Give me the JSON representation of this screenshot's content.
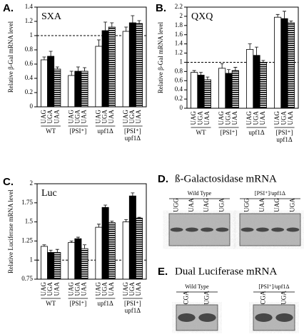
{
  "chart_data": [
    {
      "type": "bar",
      "panel": "A.",
      "title": "SXA",
      "ylabel": "Relative β-Gal mRNA level",
      "categories": [
        "WT",
        "[PSI⁺]",
        "upf1Δ",
        [
          "[PSI⁺]",
          "upf1Δ"
        ]
      ],
      "series": [
        {
          "name": "UAG",
          "color": "#ffffff",
          "values": [
            0.66,
            0.44,
            0.85,
            1.06
          ],
          "errors": [
            0.04,
            0.06,
            0.09,
            0.06
          ]
        },
        {
          "name": "UGA",
          "color": "#000000",
          "values": [
            0.71,
            0.5,
            1.07,
            1.18
          ],
          "errors": [
            0.07,
            0.06,
            0.12,
            0.1
          ]
        },
        {
          "name": "UAA",
          "color": "#000000",
          "pattern": "stripes",
          "values": [
            0.53,
            0.5,
            1.12,
            1.17
          ],
          "errors": [
            0.03,
            0.05,
            0.06,
            0.04
          ]
        }
      ],
      "ylim": [
        0,
        1.4
      ],
      "yticks": [
        0,
        0.2,
        0.4,
        0.6,
        0.8,
        1,
        1.2,
        1.4
      ],
      "reference_line": 1
    },
    {
      "type": "bar",
      "panel": "B.",
      "title": "QXQ",
      "ylabel": "Relative β-Gal mRNA level",
      "categories": [
        "WT",
        "[PSI⁺]",
        "upf1Δ",
        [
          "[PSI⁺]",
          "upf1Δ"
        ]
      ],
      "series": [
        {
          "name": "UAG",
          "color": "#ffffff",
          "values": [
            0.78,
            0.87,
            1.28,
            1.98
          ],
          "errors": [
            0.04,
            0.1,
            0.12,
            0.06
          ]
        },
        {
          "name": "UGA",
          "color": "#000000",
          "values": [
            0.72,
            0.76,
            1.15,
            1.95
          ],
          "errors": [
            0.06,
            0.08,
            0.18,
            0.16
          ]
        },
        {
          "name": "UAA",
          "color": "#000000",
          "pattern": "stripes",
          "values": [
            0.62,
            0.82,
            1.0,
            1.86
          ],
          "errors": [
            0.06,
            0.07,
            0.04,
            0.04
          ]
        }
      ],
      "ylim": [
        0,
        2.2
      ],
      "yticks": [
        0,
        0.2,
        0.4,
        0.6,
        0.8,
        1,
        1.2,
        1.4,
        1.6,
        1.8,
        2,
        2.2
      ],
      "reference_line": 1
    },
    {
      "type": "bar",
      "panel": "C.",
      "title": "Luc",
      "ylabel": "Relative Luciferase mRNA level",
      "categories": [
        "WT",
        "[PSI⁺]",
        "upf1Δ",
        [
          "[PSI⁺]",
          "upf1Δ"
        ]
      ],
      "series": [
        {
          "name": "UAG",
          "color": "#ffffff",
          "values": [
            1.18,
            1.23,
            1.43,
            1.5
          ],
          "errors": [
            0.02,
            0.02,
            0.04,
            0.03
          ]
        },
        {
          "name": "UGA",
          "color": "#000000",
          "values": [
            1.1,
            1.28,
            1.69,
            1.84
          ],
          "errors": [
            0.03,
            0.02,
            0.03,
            0.04
          ]
        },
        {
          "name": "UAA",
          "color": "#000000",
          "pattern": "stripes",
          "values": [
            1.1,
            1.15,
            1.49,
            1.55
          ],
          "errors": [
            0.04,
            0.05,
            0.02,
            0.01
          ]
        }
      ],
      "ylim": [
        0.75,
        2
      ],
      "yticks": [
        0.75,
        1,
        1.25,
        1.5,
        1.75,
        2
      ],
      "reference_line": 1
    }
  ],
  "gels": [
    {
      "panel": "D.",
      "title": "ß-Galactosidase mRNA",
      "blots": [
        {
          "label": "Wild Type",
          "lanes": [
            "UGG",
            "UAA",
            "UAG",
            "UGA"
          ]
        },
        {
          "label": "[PSI⁺]/upf1Δ",
          "lanes": [
            "UGG",
            "UAA",
            "UAG",
            "UGA"
          ]
        }
      ]
    },
    {
      "panel": "E.",
      "title": "Dual Luciferase mRNA",
      "blots": [
        {
          "label": "Wild Type",
          "lanes": [
            "CGA",
            "UGA"
          ]
        },
        {
          "label": "[PSI⁺]/upf1Δ",
          "lanes": [
            "CGA",
            "UGA"
          ]
        }
      ]
    }
  ]
}
